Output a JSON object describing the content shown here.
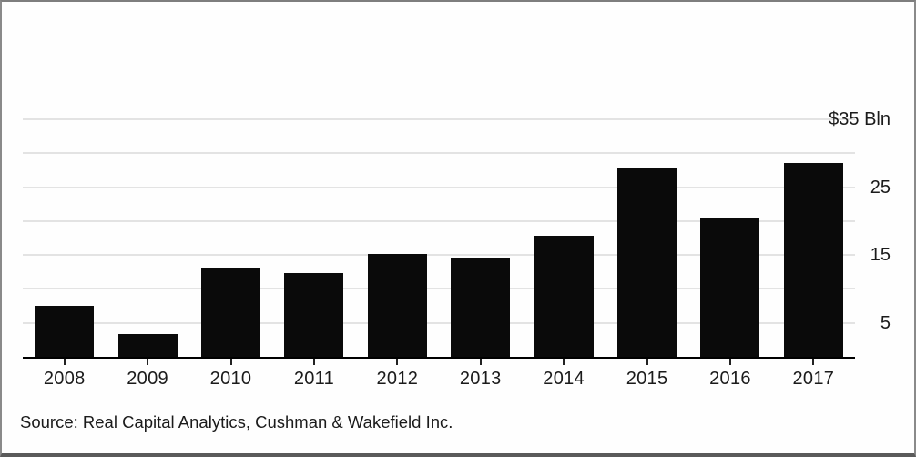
{
  "chart_data": {
    "type": "bar",
    "title": "",
    "xlabel": "",
    "ylabel": "$ Bln",
    "categories": [
      "2008",
      "2009",
      "2010",
      "2011",
      "2012",
      "2013",
      "2014",
      "2015",
      "2016",
      "2017"
    ],
    "values": [
      7.5,
      3.4,
      13.1,
      12.3,
      15.2,
      14.6,
      17.8,
      27.9,
      20.5,
      28.6
    ],
    "ylim": [
      0,
      35
    ],
    "gridline_values": [
      5,
      10,
      15,
      20,
      25,
      30,
      35
    ],
    "y_axis_labels": [
      {
        "value": 35,
        "label": "$35 Bln"
      },
      {
        "value": 25,
        "label": "25"
      },
      {
        "value": 15,
        "label": "15"
      },
      {
        "value": 5,
        "label": "5"
      }
    ],
    "grid": "on",
    "legend_position": "none",
    "colors": {
      "bar": "#0a0a0a",
      "gridline": "#e3e3e3",
      "axis_line": "#000000",
      "text": "#1b1b1b"
    }
  },
  "footer": {
    "source": "Source: Real Capital Analytics, Cushman & Wakefield Inc."
  }
}
